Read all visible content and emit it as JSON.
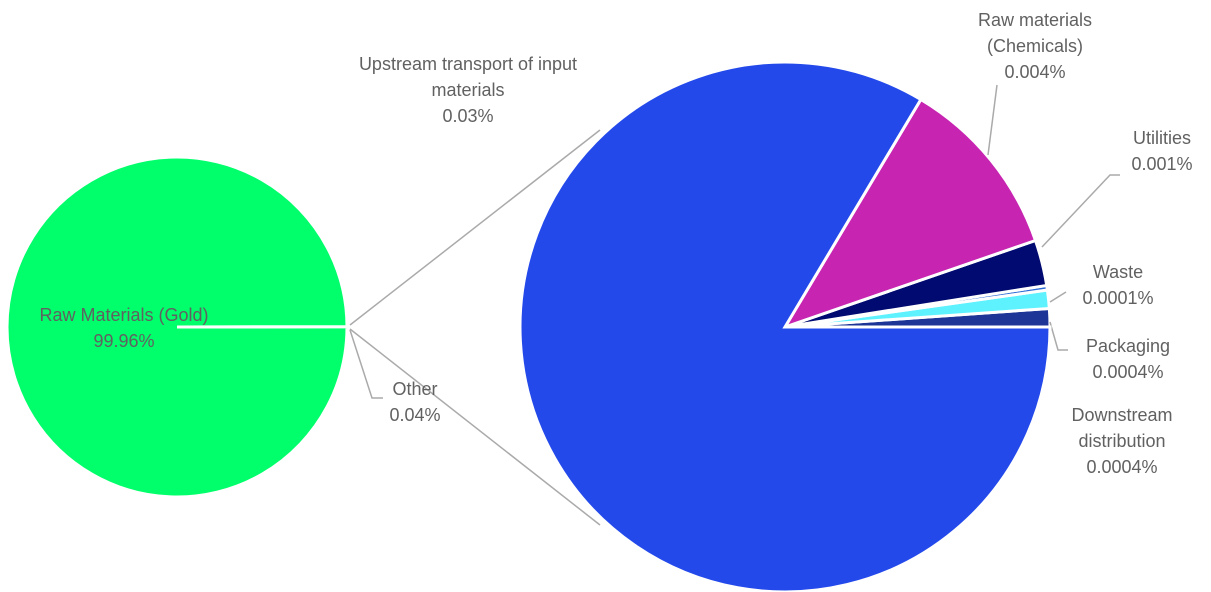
{
  "chart_data": {
    "type": "pie-of-pie",
    "pies": [
      {
        "categories": [
          "Other",
          "Raw Materials (Gold)"
        ],
        "values": [
          0.04,
          99.96
        ],
        "value_labels": [
          "0.04%",
          "99.96%"
        ],
        "colors": [
          "#e8e8e8",
          "#00ff6a"
        ]
      },
      {
        "categories": [
          "Downstream distribution",
          "Packaging",
          "Waste",
          "Utilities",
          "Raw materials (Chemicals)",
          "Upstream transport of input materials"
        ],
        "values": [
          0.0004,
          0.0004,
          0.0001,
          0.001,
          0.004,
          0.03
        ],
        "value_labels": [
          "0.0004%",
          "0.0004%",
          "0.0001%",
          "0.001%",
          "0.004%",
          "0.03%"
        ],
        "colors": [
          "#1c3596",
          "#5ef2ff",
          "#2f6bd6",
          "#000a70",
          "#c724b1",
          "#2349eb"
        ]
      }
    ]
  }
}
